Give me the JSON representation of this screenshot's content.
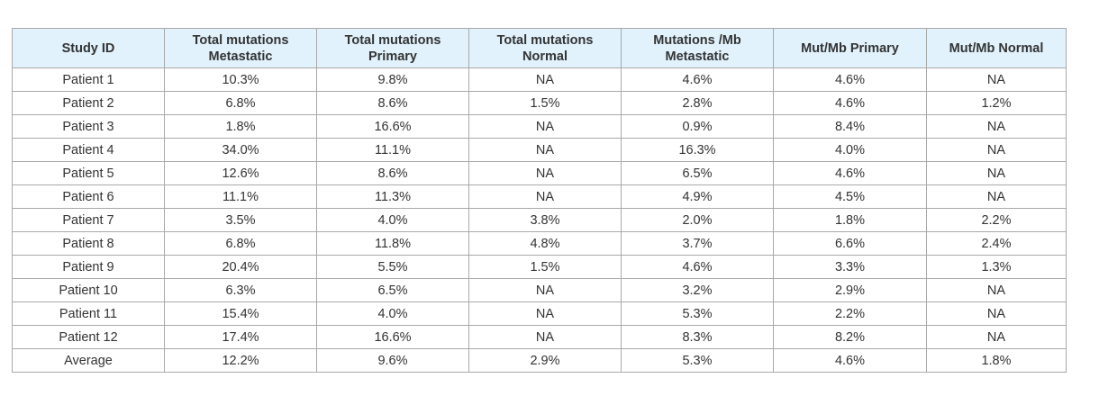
{
  "table": {
    "headers": [
      [
        "Study ID"
      ],
      [
        "Total mutations",
        "Metastatic"
      ],
      [
        "Total mutations",
        "Primary"
      ],
      [
        "Total mutations",
        "Normal"
      ],
      [
        "Mutations /Mb",
        "Metastatic"
      ],
      [
        "Mut/Mb Primary"
      ],
      [
        "Mut/Mb Normal"
      ]
    ],
    "rows": [
      [
        "Patient 1",
        "10.3%",
        "9.8%",
        "NA",
        "4.6%",
        "4.6%",
        "NA"
      ],
      [
        "Patient 2",
        "6.8%",
        "8.6%",
        "1.5%",
        "2.8%",
        "4.6%",
        "1.2%"
      ],
      [
        "Patient 3",
        "1.8%",
        "16.6%",
        "NA",
        "0.9%",
        "8.4%",
        "NA"
      ],
      [
        "Patient 4",
        "34.0%",
        "11.1%",
        "NA",
        "16.3%",
        "4.0%",
        "NA"
      ],
      [
        "Patient 5",
        "12.6%",
        "8.6%",
        "NA",
        "6.5%",
        "4.6%",
        "NA"
      ],
      [
        "Patient 6",
        "11.1%",
        "11.3%",
        "NA",
        "4.9%",
        "4.5%",
        "NA"
      ],
      [
        "Patient 7",
        "3.5%",
        "4.0%",
        "3.8%",
        "2.0%",
        "1.8%",
        "2.2%"
      ],
      [
        "Patient 8",
        "6.8%",
        "11.8%",
        "4.8%",
        "3.7%",
        "6.6%",
        "2.4%"
      ],
      [
        "Patient 9",
        "20.4%",
        "5.5%",
        "1.5%",
        "4.6%",
        "3.3%",
        "1.3%"
      ],
      [
        "Patient 10",
        "6.3%",
        "6.5%",
        "NA",
        "3.2%",
        "2.9%",
        "NA"
      ],
      [
        "Patient 11",
        "15.4%",
        "4.0%",
        "NA",
        "5.3%",
        "2.2%",
        "NA"
      ],
      [
        "Patient 12",
        "17.4%",
        "16.6%",
        "NA",
        "8.3%",
        "8.2%",
        "NA"
      ],
      [
        "Average",
        "12.2%",
        "9.6%",
        "2.9%",
        "5.3%",
        "4.6%",
        "1.8%"
      ]
    ]
  }
}
